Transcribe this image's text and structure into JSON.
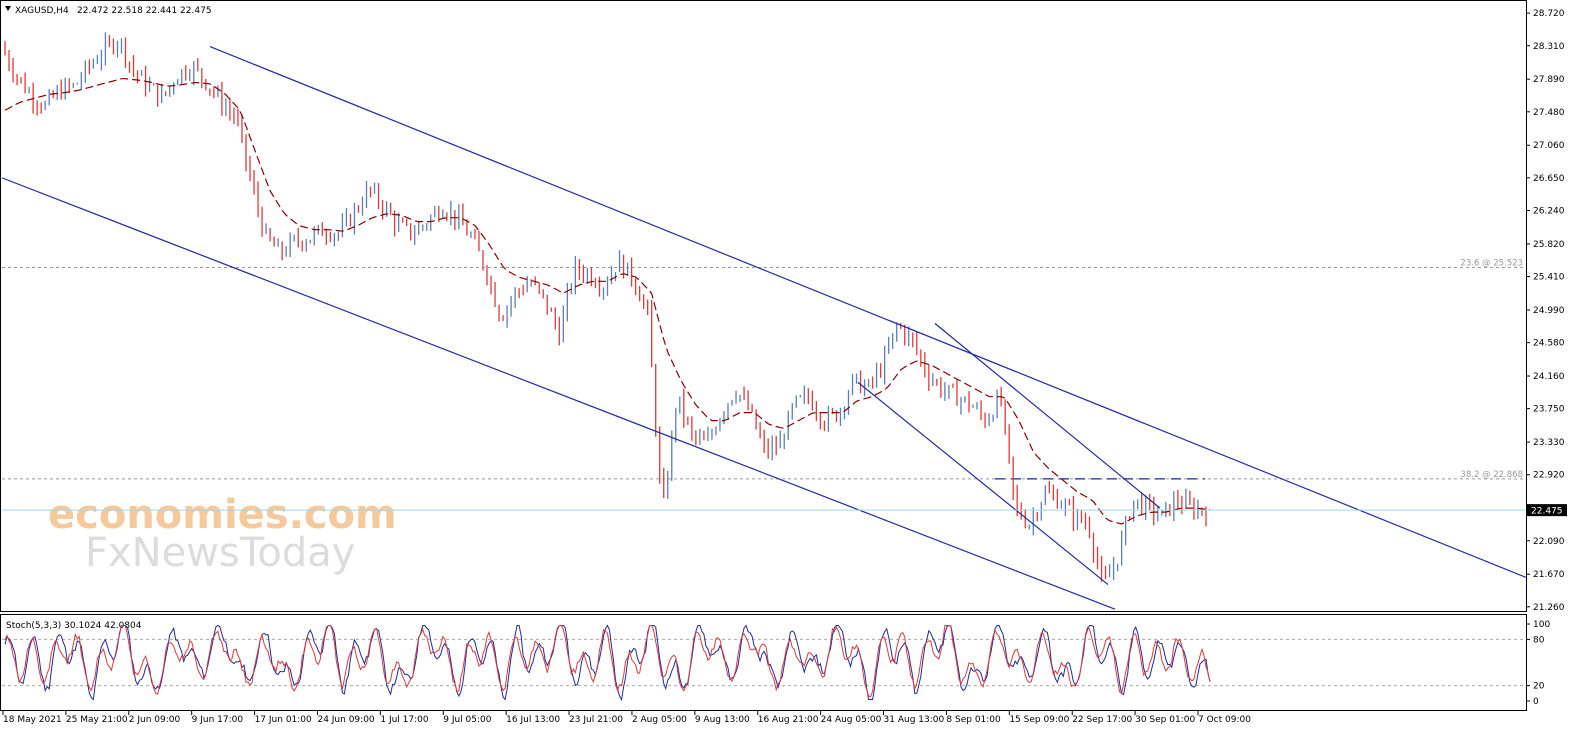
{
  "header": {
    "symbol_label": "XAGUSD,H4",
    "ohlc_label": "22.472 22.518 22.441 22.475"
  },
  "stoch_header": "Stoch(5,3,3) 30.1024 42.0804",
  "watermark": {
    "line1": "economies.com",
    "line2": "FxNewsToday"
  },
  "colors": {
    "bull": "#5b7fb8",
    "bear": "#e03a3a",
    "ma": "#8b0000",
    "channel": "#1f2aa0",
    "stoch_main": "#1f2aa0",
    "stoch_signal": "#e03a3a",
    "fib_line": "#9a9a9a",
    "price_line": "#9ed8ea"
  },
  "chart_data": [
    {
      "type": "candlestick",
      "title": "XAGUSD,H4",
      "y_ticks": [
        "28.720",
        "28.310",
        "27.890",
        "27.480",
        "27.060",
        "26.650",
        "26.240",
        "25.820",
        "25.410",
        "24.990",
        "24.580",
        "24.160",
        "23.750",
        "23.330",
        "22.920",
        "22.090",
        "21.670",
        "21.260"
      ],
      "x_ticks": [
        "18 May 2021",
        "25 May 21:00",
        "2 Jun 09:00",
        "9 Jun 17:00",
        "17 Jun 01:00",
        "24 Jun 09:00",
        "1 Jul 17:00",
        "9 Jul 05:00",
        "16 Jul 13:00",
        "23 Jul 21:00",
        "2 Aug 05:00",
        "9 Aug 13:00",
        "16 Aug 21:00",
        "24 Aug 05:00",
        "31 Aug 13:00",
        "8 Sep 01:00",
        "15 Sep 09:00",
        "22 Sep 17:00",
        "30 Sep 01:00",
        "7 Oct 09:00"
      ],
      "ylim": [
        21.22,
        28.86
      ],
      "current_price": 22.475,
      "current_price_label": "22.475",
      "fib_levels": [
        {
          "label": "23.6 @ 25.523",
          "value": 25.523
        },
        {
          "label": "38.2 @ 22.868",
          "value": 22.868
        }
      ],
      "closes": [
        28.3,
        27.95,
        27.7,
        27.55,
        27.75,
        27.8,
        28.05,
        28.25,
        28.4,
        28.0,
        27.8,
        27.65,
        27.95,
        28.05,
        27.85,
        27.6,
        27.4,
        26.6,
        25.9,
        25.7,
        25.85,
        25.9,
        26.0,
        25.95,
        26.2,
        26.5,
        26.3,
        26.05,
        25.95,
        26.1,
        26.3,
        26.15,
        25.9,
        25.5,
        24.9,
        25.2,
        25.35,
        25.1,
        24.7,
        25.5,
        25.45,
        25.3,
        25.6,
        25.4,
        24.95,
        22.4,
        23.9,
        23.4,
        23.3,
        23.7,
        24.0,
        23.7,
        23.2,
        23.3,
        23.8,
        23.9,
        23.6,
        23.7,
        24.1,
        24.0,
        24.3,
        24.8,
        24.6,
        24.2,
        24.0,
        23.9,
        23.8,
        23.6,
        23.9,
        22.5,
        22.3,
        22.7,
        22.6,
        22.4,
        22.3,
        21.5,
        21.9,
        22.6,
        22.5,
        22.4,
        22.6,
        22.5,
        22.475
      ],
      "ma_closes": [
        27.5,
        27.6,
        27.65,
        27.7,
        27.72,
        27.75,
        27.8,
        27.85,
        27.9,
        27.88,
        27.85,
        27.8,
        27.82,
        27.85,
        27.83,
        27.7,
        27.5,
        27.0,
        26.5,
        26.2,
        26.05,
        26.0,
        26.0,
        25.98,
        26.05,
        26.15,
        26.2,
        26.18,
        26.1,
        26.1,
        26.15,
        26.15,
        26.05,
        25.8,
        25.5,
        25.4,
        25.35,
        25.3,
        25.2,
        25.3,
        25.35,
        25.35,
        25.45,
        25.4,
        25.2,
        24.5,
        24.1,
        23.8,
        23.6,
        23.6,
        23.7,
        23.7,
        23.55,
        23.5,
        23.6,
        23.7,
        23.7,
        23.7,
        23.85,
        23.9,
        24.0,
        24.25,
        24.35,
        24.3,
        24.2,
        24.1,
        24.0,
        23.9,
        23.9,
        23.6,
        23.2,
        23.0,
        22.85,
        22.7,
        22.6,
        22.35,
        22.3,
        22.4,
        22.45,
        22.45,
        22.5,
        22.5,
        22.48
      ],
      "channel_upper": [
        {
          "x_label": "9 Jun 17:00",
          "y": 28.3
        },
        {
          "x_label": "7 Oct 09:00",
          "y": 23.1
        }
      ],
      "channel_lower": [
        {
          "x_label": "18 May 2021",
          "y": 26.65
        },
        {
          "x_label": "30 Sep 01:00",
          "y": 21.23
        }
      ]
    },
    {
      "type": "line",
      "title": "Stoch(5,3,3) 30.1024 42.0804",
      "y_ticks": [
        "100",
        "80",
        "20",
        "0"
      ],
      "ylim": [
        0,
        100
      ],
      "levels": [
        80,
        20
      ],
      "series": [
        {
          "values": [
            72,
            40,
            65,
            30,
            85,
            55,
            20,
            70,
            90,
            45,
            15,
            60,
            85,
            35,
            70,
            90,
            25,
            55,
            80,
            20,
            45,
            75,
            95,
            30,
            60,
            85,
            40,
            15,
            70,
            90,
            50,
            25,
            80,
            60,
            20,
            85,
            45,
            70,
            95,
            30,
            55,
            80,
            15,
            65,
            90,
            40,
            20,
            75,
            85,
            35,
            60,
            95,
            25,
            50,
            80,
            30,
            70,
            90,
            45,
            15,
            85,
            60,
            30,
            75,
            95,
            40,
            20,
            65,
            85,
            30,
            55,
            80,
            20,
            45,
            90,
            60,
            25,
            80,
            40,
            70,
            55,
            35,
            30
          ]
        },
        {
          "values": [
            65,
            48,
            58,
            38,
            75,
            62,
            28,
            60,
            85,
            52,
            22,
            52,
            78,
            42,
            62,
            84,
            32,
            48,
            74,
            28,
            40,
            68,
            88,
            38,
            52,
            78,
            48,
            22,
            62,
            84,
            56,
            30,
            72,
            65,
            28,
            76,
            52,
            64,
            88,
            38,
            50,
            74,
            22,
            58,
            84,
            46,
            26,
            68,
            80,
            42,
            54,
            88,
            32,
            46,
            74,
            36,
            64,
            84,
            50,
            22,
            78,
            66,
            36,
            68,
            88,
            46,
            26,
            58,
            80,
            36,
            50,
            74,
            26,
            40,
            84,
            64,
            30,
            74,
            46,
            64,
            60,
            40,
            42
          ]
        }
      ]
    }
  ]
}
